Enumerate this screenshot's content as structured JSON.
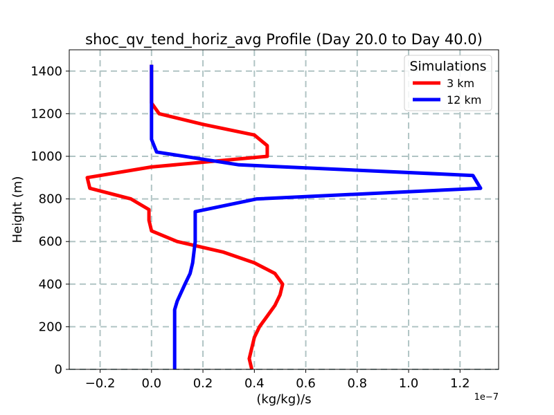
{
  "chart_data": {
    "type": "line",
    "title": "shoc_qv_tend_horiz_avg Profile (Day 20.0 to Day 40.0)",
    "xlabel": "(kg/kg)/s",
    "ylabel": "Height (m)",
    "x_offset_label": "1e−7",
    "xlim": [
      -0.32,
      1.35
    ],
    "ylim": [
      0,
      1500
    ],
    "xticks": [
      -0.2,
      0.0,
      0.2,
      0.4,
      0.6,
      0.8,
      1.0,
      1.2
    ],
    "xtick_labels": [
      "−0.2",
      "0.0",
      "0.2",
      "0.4",
      "0.6",
      "0.8",
      "1.0",
      "1.2"
    ],
    "yticks": [
      0,
      200,
      400,
      600,
      800,
      1000,
      1200,
      1400
    ],
    "ytick_labels": [
      "0",
      "200",
      "400",
      "600",
      "800",
      "1000",
      "1200",
      "1400"
    ],
    "grid": true,
    "legend": {
      "title": "Simulations",
      "placement": "top-right"
    },
    "series": [
      {
        "name": "3 km",
        "color": "#ff0000",
        "points": [
          [
            0.39,
            0
          ],
          [
            0.38,
            50
          ],
          [
            0.39,
            100
          ],
          [
            0.4,
            150
          ],
          [
            0.42,
            200
          ],
          [
            0.45,
            250
          ],
          [
            0.48,
            300
          ],
          [
            0.5,
            350
          ],
          [
            0.51,
            400
          ],
          [
            0.48,
            450
          ],
          [
            0.4,
            500
          ],
          [
            0.28,
            550
          ],
          [
            0.1,
            600
          ],
          [
            0.0,
            650
          ],
          [
            -0.01,
            700
          ],
          [
            -0.01,
            750
          ],
          [
            -0.08,
            800
          ],
          [
            -0.24,
            850
          ],
          [
            -0.25,
            900
          ],
          [
            0.0,
            950
          ],
          [
            0.45,
            1000
          ],
          [
            0.45,
            1050
          ],
          [
            0.4,
            1100
          ],
          [
            0.2,
            1150
          ],
          [
            0.03,
            1200
          ],
          [
            0.0,
            1250
          ],
          [
            0.0,
            1300
          ],
          [
            0.0,
            1350
          ],
          [
            0.0,
            1400
          ],
          [
            0.0,
            1430
          ]
        ]
      },
      {
        "name": "12 km",
        "color": "#0000ff",
        "points": [
          [
            0.09,
            0
          ],
          [
            0.09,
            100
          ],
          [
            0.09,
            200
          ],
          [
            0.09,
            280
          ],
          [
            0.1,
            320
          ],
          [
            0.13,
            400
          ],
          [
            0.15,
            450
          ],
          [
            0.16,
            500
          ],
          [
            0.17,
            600
          ],
          [
            0.17,
            700
          ],
          [
            0.17,
            740
          ],
          [
            0.41,
            800
          ],
          [
            1.28,
            850
          ],
          [
            1.25,
            910
          ],
          [
            0.34,
            960
          ],
          [
            0.02,
            1020
          ],
          [
            0.0,
            1080
          ],
          [
            0.0,
            1200
          ],
          [
            0.0,
            1300
          ],
          [
            0.0,
            1430
          ]
        ]
      }
    ]
  }
}
